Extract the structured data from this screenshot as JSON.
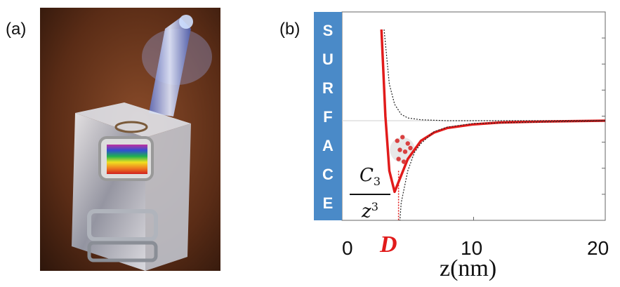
{
  "panels": {
    "a_label": "(a)",
    "b_label": "(b)"
  },
  "surface_letters": [
    "S",
    "U",
    "R",
    "F",
    "A",
    "C",
    "E"
  ],
  "annotations": {
    "d_marker": "D",
    "c3_numerator_base": "C",
    "c3_numerator_sub": "3",
    "c3_denominator_base": "z",
    "c3_denominator_sup": "3"
  },
  "chart_data": {
    "type": "line",
    "xlabel": "z(nm)",
    "ylabel": "",
    "x_ticks": [
      "0",
      "10",
      "20"
    ],
    "xlim": [
      0,
      20
    ],
    "grid": false,
    "series": [
      {
        "style": "red-solid",
        "color": "#e11b1b",
        "x": [
          3.0,
          3.3,
          3.6,
          4.0,
          4.5,
          5.0,
          6.0,
          7.0,
          8.0,
          10.0,
          12.0,
          15.0,
          20.0
        ],
        "y": [
          1.0,
          0.05,
          -0.55,
          -0.78,
          -0.6,
          -0.42,
          -0.22,
          -0.13,
          -0.08,
          -0.04,
          -0.02,
          -0.01,
          0.0
        ]
      },
      {
        "style": "black-dotted",
        "color": "#222222",
        "x": [
          3.2,
          3.6,
          4.0,
          4.5,
          5.0,
          6.0,
          8.0,
          12.0,
          20.0
        ],
        "y": [
          1.0,
          0.4,
          0.18,
          0.07,
          0.03,
          0.01,
          0.0,
          0.0,
          0.0
        ]
      },
      {
        "style": "black-dotted",
        "color": "#222222",
        "x": [
          4.2,
          4.5,
          5.0,
          5.5,
          6.0,
          7.0,
          8.0,
          10.0,
          20.0
        ],
        "y": [
          -1.5,
          -0.9,
          -0.55,
          -0.35,
          -0.25,
          -0.12,
          -0.07,
          -0.03,
          0.0
        ]
      }
    ],
    "d_position_x": 4.3,
    "colors": {
      "surface_box": "#4a8ac8",
      "potential": "#e11b1b",
      "atoms": "#d94040"
    }
  }
}
